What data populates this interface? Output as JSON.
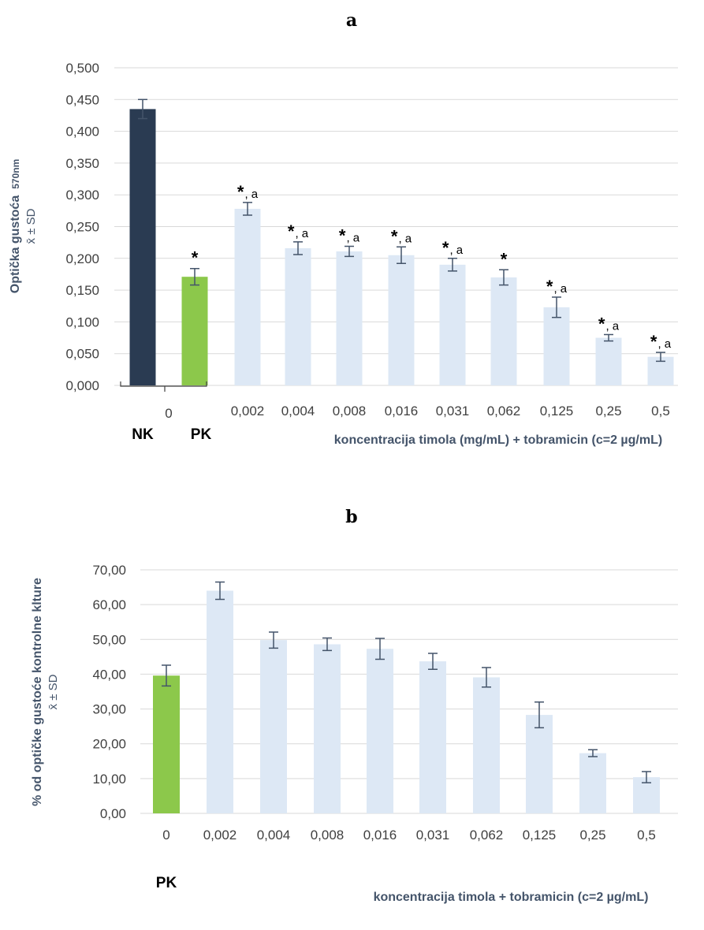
{
  "chart_data": [
    {
      "type": "bar",
      "panel": "a",
      "ylabel": "Optička gustoća",
      "ylabel_sub": "570nm",
      "ylabel2": "x̄ ± SD",
      "xlabel": "koncentracija timola (mg/mL) + tobramicin (c=2 µg/mL)",
      "ylim": [
        0,
        0.5
      ],
      "yticks": [
        "0,000",
        "0,050",
        "0,100",
        "0,150",
        "0,200",
        "0,250",
        "0,300",
        "0,350",
        "0,400",
        "0,450",
        "0,500"
      ],
      "zero_label": "0",
      "group_labels": [
        "NK",
        "PK"
      ],
      "categories": [
        "NK",
        "PK",
        "0,002",
        "0,004",
        "0,008",
        "0,016",
        "0,031",
        "0,062",
        "0,125",
        "0,25",
        "0,5"
      ],
      "tick_labels": [
        "",
        "",
        "0,002",
        "0,004",
        "0,008",
        "0,016",
        "0,031",
        "0,062",
        "0,125",
        "0,25",
        "0,5"
      ],
      "values": [
        0.435,
        0.171,
        0.278,
        0.216,
        0.211,
        0.205,
        0.19,
        0.17,
        0.123,
        0.075,
        0.045
      ],
      "errors": [
        0.015,
        0.013,
        0.01,
        0.01,
        0.008,
        0.013,
        0.01,
        0.012,
        0.016,
        0.005,
        0.007
      ],
      "colors": [
        "#2a3b52",
        "#8cc84b",
        "#dde8f5",
        "#dde8f5",
        "#dde8f5",
        "#dde8f5",
        "#dde8f5",
        "#dde8f5",
        "#dde8f5",
        "#dde8f5",
        "#dde8f5"
      ],
      "significance": [
        "",
        "*",
        "*,a",
        "*,a",
        "*,a",
        "*,a",
        "*,a",
        "*",
        "*,a",
        "*,a",
        "*,a"
      ]
    },
    {
      "type": "bar",
      "panel": "b",
      "ylabel": "% od optičke gustoće kontrolne klture",
      "ylabel2": "x̄ ± SD",
      "xlabel": "koncentracija timola + tobramicin (c=2 µg/mL)",
      "ylim": [
        0,
        70
      ],
      "yticks": [
        "0,00",
        "10,00",
        "20,00",
        "30,00",
        "40,00",
        "50,00",
        "60,00",
        "70,00"
      ],
      "group_labels": [
        "PK"
      ],
      "categories": [
        "0",
        "0,002",
        "0,004",
        "0,008",
        "0,016",
        "0,031",
        "0,062",
        "0,125",
        "0,25",
        "0,5"
      ],
      "values": [
        39.6,
        64.0,
        49.8,
        48.6,
        47.3,
        43.7,
        39.1,
        28.3,
        17.3,
        10.4
      ],
      "errors": [
        3.0,
        2.5,
        2.3,
        1.8,
        3.0,
        2.3,
        2.8,
        3.7,
        1.0,
        1.6
      ],
      "colors": [
        "#8cc84b",
        "#dde8f5",
        "#dde8f5",
        "#dde8f5",
        "#dde8f5",
        "#dde8f5",
        "#dde8f5",
        "#dde8f5",
        "#dde8f5",
        "#dde8f5"
      ]
    }
  ]
}
